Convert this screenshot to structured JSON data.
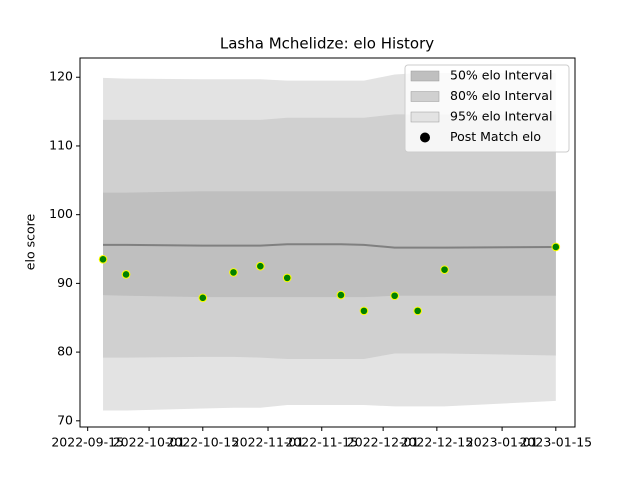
{
  "chart_data": {
    "type": "band_scatter",
    "title": "Lasha Mchelidze: elo History",
    "ylabel": "elo score",
    "x": [
      "2022-09-19",
      "2022-09-25",
      "2022-10-15",
      "2022-10-23",
      "2022-10-30",
      "2022-11-06",
      "2022-11-20",
      "2022-11-26",
      "2022-12-04",
      "2022-12-10",
      "2022-12-17",
      "2023-01-15"
    ],
    "bands": [
      {
        "name": "95% elo Interval",
        "color": "#e3e3e3",
        "upper": [
          119.9,
          119.8,
          119.7,
          119.7,
          119.7,
          119.5,
          119.5,
          119.5,
          120.4,
          120.6,
          120.6,
          120.6
        ],
        "lower": [
          71.5,
          71.5,
          71.8,
          71.9,
          71.9,
          72.3,
          72.3,
          72.3,
          72.1,
          72.1,
          72.1,
          72.9
        ]
      },
      {
        "name": "80% elo Interval",
        "color": "#d0d0d0",
        "upper": [
          113.8,
          113.8,
          113.8,
          113.8,
          113.8,
          114.1,
          114.1,
          114.1,
          114.6,
          114.6,
          114.6,
          114.6
        ],
        "lower": [
          79.2,
          79.2,
          79.3,
          79.3,
          79.2,
          79.0,
          79.0,
          79.0,
          79.8,
          79.8,
          79.8,
          79.5
        ]
      },
      {
        "name": "50% elo Interval",
        "color": "#bfbfbf",
        "upper": [
          103.2,
          103.2,
          103.4,
          103.4,
          103.4,
          103.4,
          103.4,
          103.4,
          103.4,
          103.4,
          103.4,
          103.4
        ],
        "lower": [
          88.3,
          88.2,
          88.0,
          88.0,
          88.0,
          88.0,
          88.0,
          88.0,
          88.2,
          88.2,
          88.2,
          88.2
        ]
      }
    ],
    "line": {
      "color": "#808080",
      "values": [
        95.6,
        95.6,
        95.5,
        95.5,
        95.5,
        95.7,
        95.7,
        95.6,
        95.2,
        95.2,
        95.2,
        95.3
      ]
    },
    "series": [
      {
        "name": "Post Match elo",
        "color": "#008000",
        "edgecolor": "#ffff00",
        "values": [
          93.5,
          91.3,
          87.9,
          91.6,
          92.5,
          90.8,
          88.3,
          86.0,
          88.2,
          86.0,
          92.0,
          95.3
        ]
      }
    ],
    "xlim": [
      "2022-09-13",
      "2023-01-20"
    ],
    "xticks": [
      "2022-09-15",
      "2022-10-01",
      "2022-10-15",
      "2022-11-01",
      "2022-11-15",
      "2022-12-01",
      "2022-12-15",
      "2023-01-01",
      "2023-01-15"
    ],
    "ylim": [
      69.1,
      122.8
    ],
    "yticks": [
      70,
      80,
      90,
      100,
      110,
      120
    ],
    "legend": "upper right"
  }
}
